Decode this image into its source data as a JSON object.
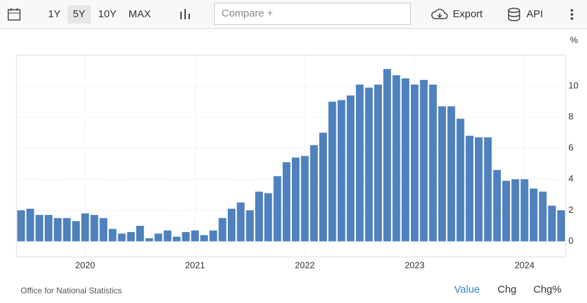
{
  "toolbar": {
    "ranges": [
      "1Y",
      "5Y",
      "10Y",
      "MAX"
    ],
    "compare": "Compare +",
    "export": "Export",
    "api": "API"
  },
  "chart_data": {
    "type": "bar",
    "unit": "%",
    "color": "#4e81bd",
    "categories": [
      null,
      null,
      null,
      null,
      null,
      null,
      null,
      "2020",
      null,
      null,
      null,
      null,
      null,
      null,
      null,
      null,
      null,
      null,
      null,
      "2021",
      null,
      null,
      null,
      null,
      null,
      null,
      null,
      null,
      null,
      null,
      null,
      "2022",
      null,
      null,
      null,
      null,
      null,
      null,
      null,
      null,
      null,
      null,
      null,
      "2023",
      null,
      null,
      null,
      null,
      null,
      null,
      null,
      null,
      null,
      null,
      null,
      "2024",
      null,
      null,
      null,
      null
    ],
    "values": [
      2.0,
      2.1,
      1.7,
      1.7,
      1.5,
      1.5,
      1.3,
      1.8,
      1.7,
      1.5,
      0.8,
      0.5,
      0.6,
      1.0,
      0.2,
      0.5,
      0.7,
      0.3,
      0.6,
      0.7,
      0.4,
      0.7,
      1.5,
      2.1,
      2.5,
      2.0,
      3.2,
      3.1,
      4.2,
      5.1,
      5.4,
      5.5,
      6.2,
      7.0,
      9.0,
      9.1,
      9.4,
      10.1,
      9.9,
      10.1,
      11.1,
      10.7,
      10.5,
      10.1,
      10.4,
      10.1,
      8.7,
      8.7,
      7.9,
      6.8,
      6.7,
      6.7,
      4.6,
      3.9,
      4.0,
      4.0,
      3.4,
      3.2,
      2.3,
      2.0
    ],
    "ylim": [
      -1,
      12
    ],
    "yticks": [
      0,
      2,
      4,
      6,
      8,
      10
    ],
    "grid": true
  },
  "footer": {
    "source": "Office for National Statistics",
    "tabs": [
      "Value",
      "Chg",
      "Chg%"
    ]
  }
}
